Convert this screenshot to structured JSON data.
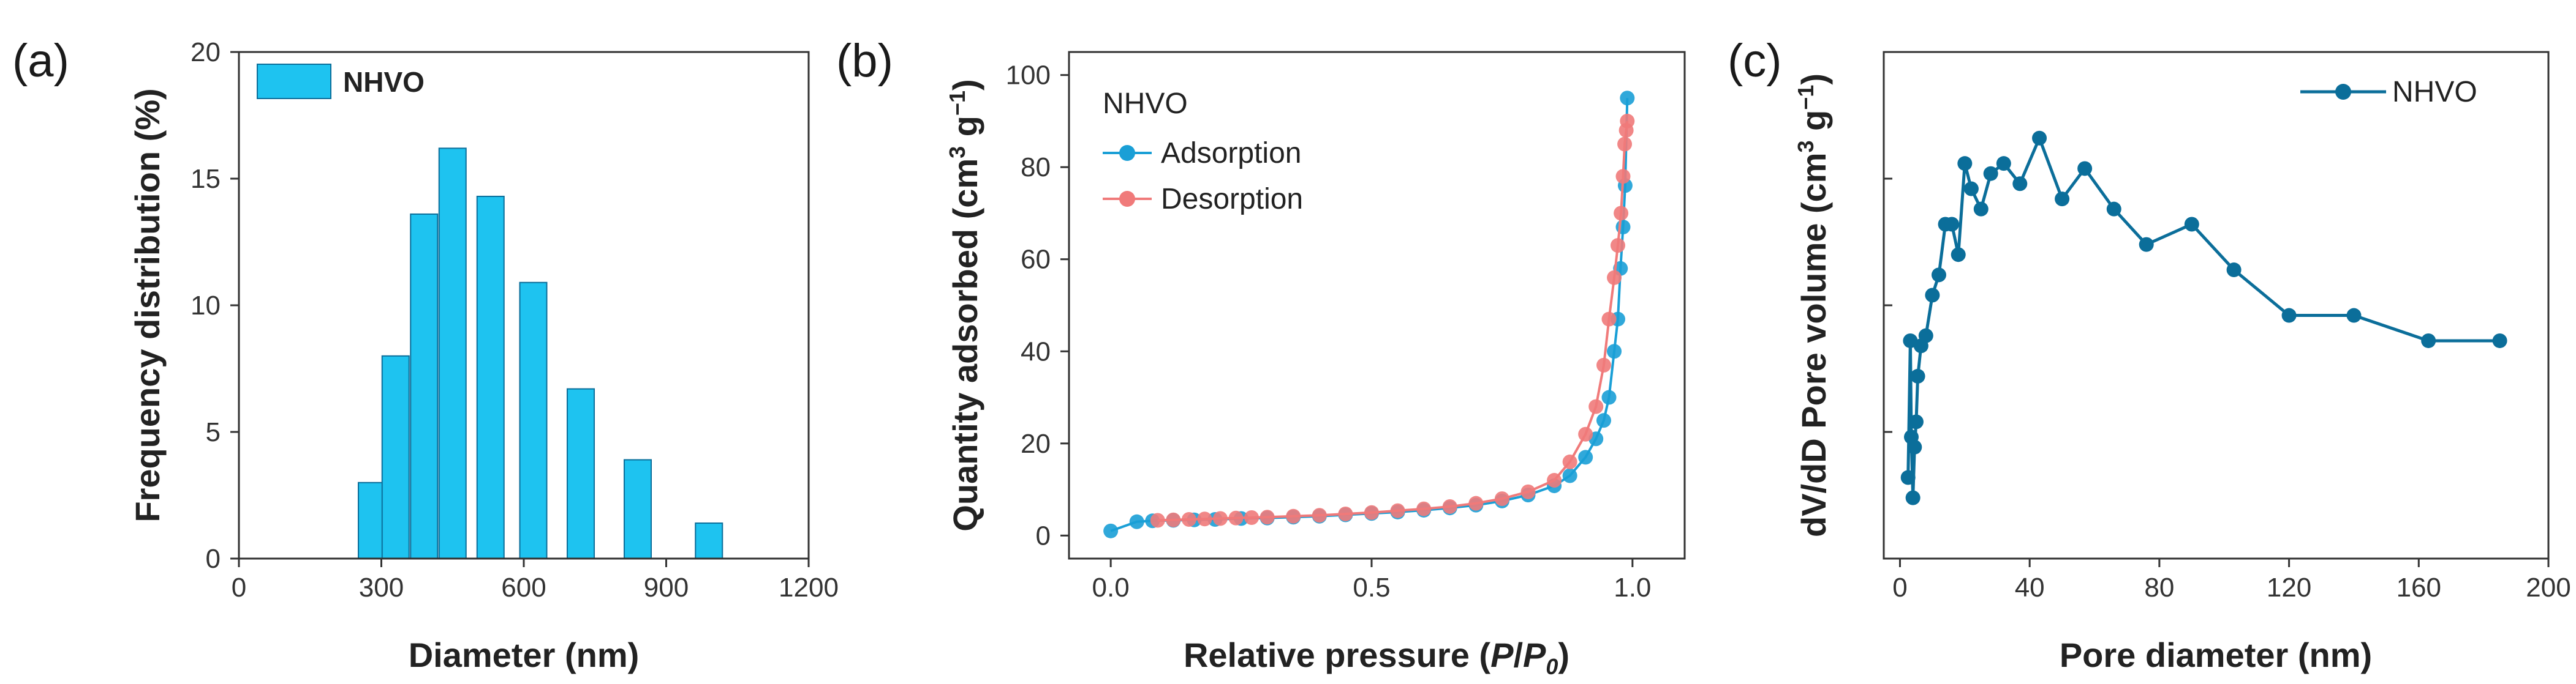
{
  "panels": {
    "a": {
      "label": "(a)"
    },
    "b": {
      "label": "(b)"
    },
    "c": {
      "label": "(c)"
    }
  },
  "chart_data": [
    {
      "type": "bar",
      "title": "",
      "xlabel": "Diameter (nm)",
      "ylabel": "Frequency distribution (%)",
      "xlim": [
        0,
        1200
      ],
      "ylim": [
        0,
        20
      ],
      "xticks": [
        "0",
        "300",
        "600",
        "900",
        "1200"
      ],
      "yticks": [
        "0",
        "5",
        "10",
        "15",
        "20"
      ],
      "legend": {
        "label": "NHVO",
        "position": "top-left"
      },
      "bar_color": "#1ec3f0",
      "x": [
        280,
        330,
        390,
        450,
        530,
        620,
        720,
        840,
        990
      ],
      "values": [
        3.0,
        8.0,
        13.6,
        16.2,
        14.3,
        10.9,
        6.7,
        3.9,
        1.4
      ]
    },
    {
      "type": "line",
      "xlabel_parts": [
        "Relative pressure (",
        "P",
        "/",
        "P",
        "0",
        ")"
      ],
      "ylabel_parts": [
        "Quantity adsorbed (cm",
        "3",
        " g",
        "−1",
        ")"
      ],
      "xlim": [
        -0.08,
        1.1
      ],
      "ylim": [
        -5,
        105
      ],
      "xticks": [
        {
          "value": 0,
          "label": "0.0"
        },
        {
          "value": 0.5,
          "label": "0.5"
        },
        {
          "value": 1.0,
          "label": "1.0"
        }
      ],
      "yticks": [
        {
          "value": 0,
          "label": "0"
        },
        {
          "value": 20,
          "label": "20"
        },
        {
          "value": 40,
          "label": "40"
        },
        {
          "value": 60,
          "label": "60"
        },
        {
          "value": 80,
          "label": "80"
        },
        {
          "value": 100,
          "label": "100"
        }
      ],
      "legend": {
        "title": "NHVO",
        "position": "top-left"
      },
      "series": [
        {
          "name": "Adsorption",
          "color": "#1a9fd6",
          "x": [
            0.0,
            0.05,
            0.08,
            0.12,
            0.16,
            0.2,
            0.25,
            0.3,
            0.35,
            0.4,
            0.45,
            0.5,
            0.55,
            0.6,
            0.65,
            0.7,
            0.75,
            0.8,
            0.85,
            0.88,
            0.91,
            0.93,
            0.945,
            0.955,
            0.965,
            0.972,
            0.977,
            0.982,
            0.986,
            0.99
          ],
          "y": [
            1.0,
            3.0,
            3.2,
            3.3,
            3.4,
            3.5,
            3.7,
            3.8,
            4.0,
            4.2,
            4.5,
            4.8,
            5.1,
            5.5,
            6.0,
            6.6,
            7.5,
            8.8,
            10.8,
            13.0,
            17.0,
            21.0,
            25.0,
            30.0,
            40.0,
            47.0,
            58.0,
            67.0,
            76.0,
            95.0
          ]
        },
        {
          "name": "Desorption",
          "color": "#f07a7a",
          "x": [
            0.99,
            0.988,
            0.985,
            0.982,
            0.978,
            0.972,
            0.965,
            0.955,
            0.945,
            0.93,
            0.91,
            0.88,
            0.85,
            0.8,
            0.75,
            0.7,
            0.65,
            0.6,
            0.55,
            0.5,
            0.45,
            0.4,
            0.35,
            0.3,
            0.27,
            0.24,
            0.21,
            0.18,
            0.15,
            0.12,
            0.09
          ],
          "y": [
            90.0,
            88.0,
            85.0,
            78.0,
            70.0,
            63.0,
            56.0,
            47.0,
            37.0,
            28.0,
            22.0,
            16.0,
            12.0,
            9.5,
            8.0,
            7.0,
            6.3,
            5.8,
            5.4,
            5.0,
            4.7,
            4.4,
            4.2,
            4.0,
            3.9,
            3.8,
            3.7,
            3.6,
            3.5,
            3.4,
            3.3
          ]
        }
      ]
    },
    {
      "type": "line",
      "xlabel": "Pore diameter (nm)",
      "ylabel_parts": [
        "dV/dD Pore volume (cm",
        "3",
        " g",
        "−1",
        ")"
      ],
      "xlim": [
        -5,
        200
      ],
      "ylim": [
        0,
        1
      ],
      "xticks": [
        {
          "value": 0,
          "label": "0"
        },
        {
          "value": 40,
          "label": "40"
        },
        {
          "value": 80,
          "label": "80"
        },
        {
          "value": 120,
          "label": "120"
        },
        {
          "value": 160,
          "label": "160"
        },
        {
          "value": 200,
          "label": "200"
        }
      ],
      "yticks_unlabeled": [
        0.25,
        0.5,
        0.75
      ],
      "legend": {
        "label": "NHVO",
        "position": "top-right"
      },
      "series": [
        {
          "name": "NHVO",
          "color": "#0b6e9a",
          "x": [
            2.5,
            3.2,
            3.5,
            4.0,
            4.5,
            5.0,
            5.5,
            6.5,
            8.0,
            10.0,
            12.0,
            14.0,
            16.0,
            18.0,
            20.0,
            22.0,
            25.0,
            28.0,
            32.0,
            37.0,
            43.0,
            50.0,
            57.0,
            66.0,
            76.0,
            90.0,
            103.0,
            120.0,
            140.0,
            163.0,
            185.0
          ],
          "y": [
            0.16,
            0.43,
            0.24,
            0.12,
            0.22,
            0.27,
            0.36,
            0.42,
            0.44,
            0.52,
            0.56,
            0.66,
            0.66,
            0.6,
            0.78,
            0.73,
            0.69,
            0.76,
            0.78,
            0.74,
            0.83,
            0.71,
            0.77,
            0.69,
            0.62,
            0.66,
            0.57,
            0.48,
            0.48,
            0.43,
            0.43
          ]
        }
      ]
    }
  ]
}
